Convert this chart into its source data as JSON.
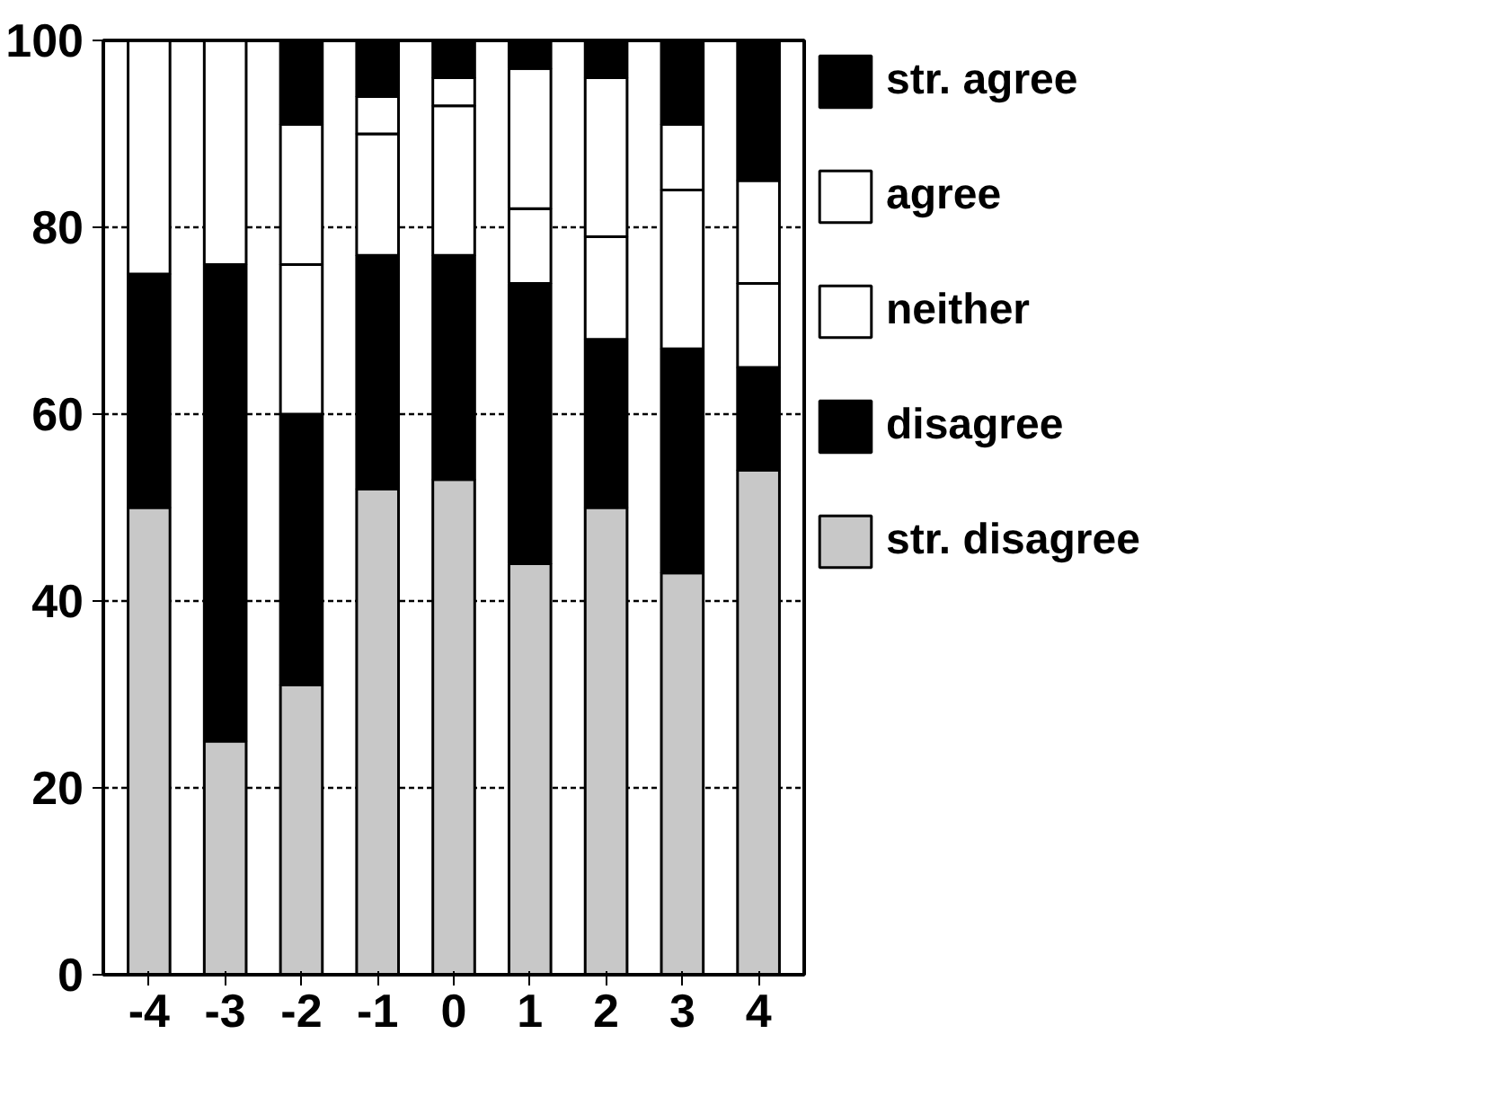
{
  "chart_data": {
    "type": "bar",
    "stacked": true,
    "categories": [
      "-4",
      "-3",
      "-2",
      "-1",
      "0",
      "1",
      "2",
      "3",
      "4"
    ],
    "series": [
      {
        "name": "str. disagree",
        "color": "#c8c8c8",
        "values": [
          50,
          25,
          31,
          52,
          53,
          44,
          50,
          43,
          54
        ]
      },
      {
        "name": "disagree",
        "color": "#000000",
        "values": [
          25,
          51,
          29,
          25,
          24,
          30,
          18,
          24,
          11
        ]
      },
      {
        "name": "neither",
        "color": "#ffffff",
        "values": [
          25,
          24,
          16,
          13,
          16,
          8,
          11,
          17,
          9
        ]
      },
      {
        "name": "agree",
        "color": "#ffffff",
        "values": [
          0,
          0,
          15,
          4,
          3,
          15,
          17,
          7,
          11
        ]
      },
      {
        "name": "str. agree",
        "color": "#000000",
        "values": [
          0,
          0,
          9,
          6,
          4,
          3,
          4,
          9,
          15
        ]
      }
    ],
    "ylim": [
      0,
      100
    ],
    "yticks": [
      0,
      20,
      40,
      60,
      80,
      100
    ],
    "grid": "y",
    "legend": "right"
  }
}
